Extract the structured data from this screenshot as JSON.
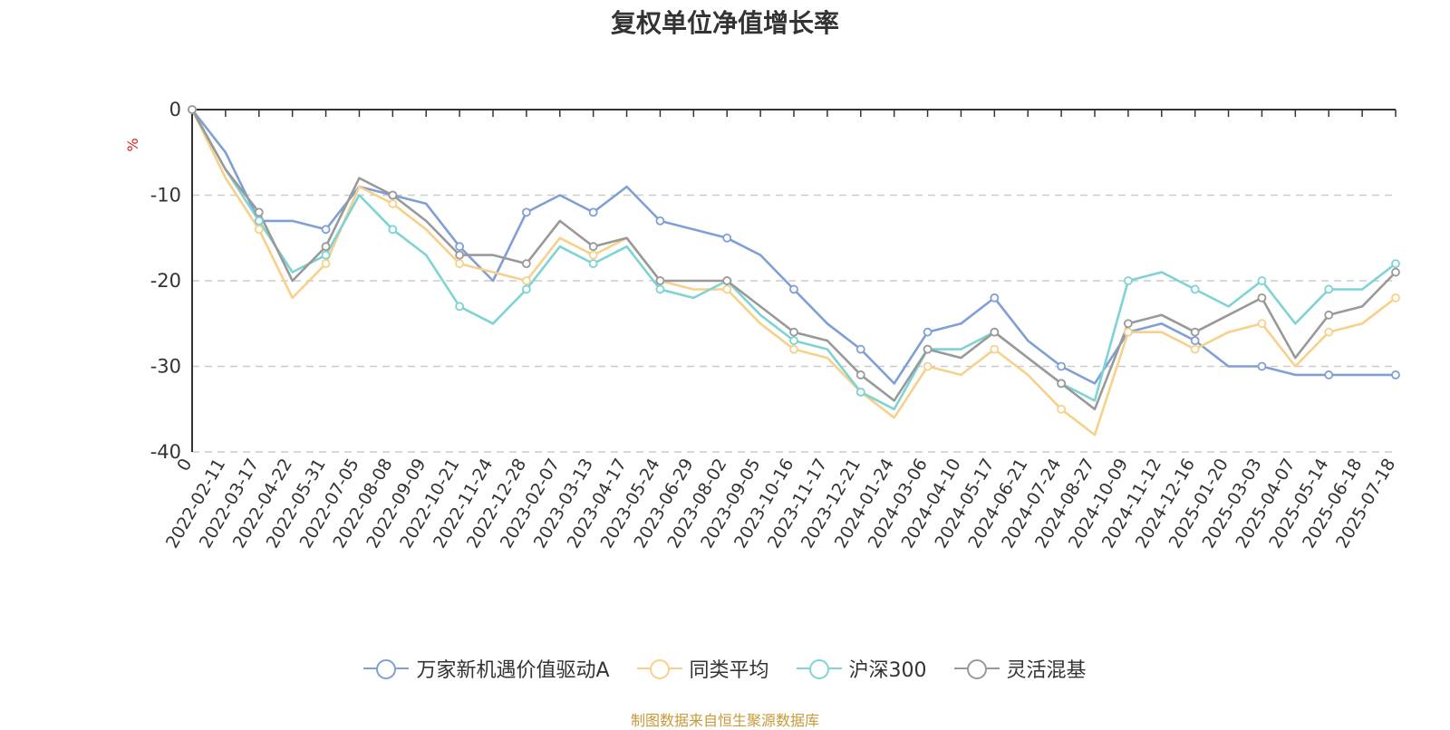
{
  "chart_data": {
    "type": "line",
    "title": "复权单位净值增长率",
    "ylabel": "%",
    "ylim": [
      -40,
      0
    ],
    "yticks": [
      "0",
      "-10",
      "-20",
      "-30",
      "-40"
    ],
    "grid": true,
    "legend_position": "bottom",
    "x_start_label": "0",
    "x_tick_labels": [
      "2022-02-11",
      "2022-03-17",
      "2022-04-22",
      "2022-05-31",
      "2022-07-05",
      "2022-08-08",
      "2022-09-09",
      "2022-10-21",
      "2022-11-24",
      "2022-12-28",
      "2023-02-07",
      "2023-03-13",
      "2023-04-17",
      "2023-05-24",
      "2023-06-29",
      "2023-08-02",
      "2023-09-05",
      "2023-10-16",
      "2023-11-17",
      "2023-12-21",
      "2024-01-24",
      "2024-03-06",
      "2024-04-10",
      "2024-05-17",
      "2024-06-21",
      "2024-07-24",
      "2024-08-27",
      "2024-10-09",
      "2024-11-12",
      "2024-12-16",
      "2025-01-20",
      "2025-03-03",
      "2025-04-07",
      "2025-05-14",
      "2025-06-18",
      "2025-07-18"
    ],
    "x": [
      "0",
      "2022-02-11",
      "2022-03-17",
      "2022-04-22",
      "2022-05-31",
      "2022-07-05",
      "2022-08-08",
      "2022-09-09",
      "2022-10-21",
      "2022-11-24",
      "2022-12-28",
      "2023-02-07",
      "2023-03-13",
      "2023-04-17",
      "2023-05-24",
      "2023-06-29",
      "2023-08-02",
      "2023-09-05",
      "2023-10-16",
      "2023-11-17",
      "2023-12-21",
      "2024-01-24",
      "2024-03-06",
      "2024-04-10",
      "2024-05-17",
      "2024-06-21",
      "2024-07-24",
      "2024-08-27",
      "2024-10-09",
      "2024-11-12",
      "2024-12-16",
      "2025-01-20",
      "2025-03-03",
      "2025-04-07",
      "2025-05-14",
      "2025-06-18",
      "2025-07-18"
    ],
    "series": [
      {
        "name": "万家新机遇价值驱动A",
        "color": "#7f9fd6",
        "values": [
          0,
          -5,
          -13,
          -13,
          -14,
          -9,
          -10,
          -11,
          -16,
          -20,
          -12,
          -10,
          -12,
          -9,
          -13,
          -14,
          -15,
          -17,
          -21,
          -25,
          -28,
          -32,
          -26,
          -25,
          -22,
          -27,
          -30,
          -32,
          -26,
          -25,
          -27,
          -30,
          -30,
          -31,
          -31,
          -31,
          -31
        ]
      },
      {
        "name": "同类平均",
        "color": "#f7d08a",
        "values": [
          0,
          -8,
          -14,
          -22,
          -18,
          -9,
          -11,
          -14,
          -18,
          -19,
          -20,
          -15,
          -17,
          -15,
          -20,
          -21,
          -21,
          -25,
          -28,
          -29,
          -33,
          -36,
          -30,
          -31,
          -28,
          -31,
          -35,
          -38,
          -26,
          -26,
          -28,
          -26,
          -25,
          -30,
          -26,
          -25,
          -22
        ]
      },
      {
        "name": "沪深300",
        "color": "#7ed3d3",
        "values": [
          0,
          -7,
          -13,
          -19,
          -17,
          -10,
          -14,
          -17,
          -23,
          -25,
          -21,
          -16,
          -18,
          -16,
          -21,
          -22,
          -20,
          -24,
          -27,
          -28,
          -33,
          -35,
          -28,
          -28,
          -26,
          -29,
          -32,
          -34,
          -20,
          -19,
          -21,
          -23,
          -20,
          -25,
          -21,
          -21,
          -18
        ]
      },
      {
        "name": "灵活混基",
        "color": "#999999",
        "values": [
          0,
          -7,
          -12,
          -20,
          -16,
          -8,
          -10,
          -13,
          -17,
          -17,
          -18,
          -13,
          -16,
          -15,
          -20,
          -20,
          -20,
          -23,
          -26,
          -27,
          -31,
          -34,
          -28,
          -29,
          -26,
          -29,
          -32,
          -35,
          -25,
          -24,
          -26,
          -24,
          -22,
          -29,
          -24,
          -23,
          -19
        ]
      }
    ]
  },
  "source_text": "制图数据来自恒生聚源数据库"
}
